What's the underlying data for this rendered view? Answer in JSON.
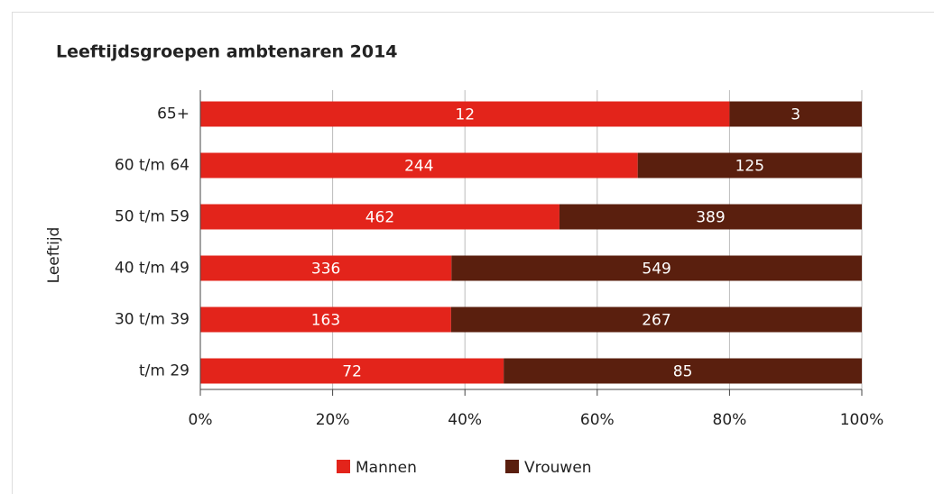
{
  "chart_data": {
    "type": "bar",
    "orientation": "horizontal",
    "stacking": "percent",
    "title": "Leeftijdsgroepen ambtenaren 2014",
    "y_label": "Leeftijd",
    "categories": [
      "65+",
      "60 t/m 64",
      "50 t/m 59",
      "40 t/m 49",
      "30 t/m 39",
      "t/m 29"
    ],
    "series": [
      {
        "name": "Mannen",
        "color": "#e3241b",
        "values": [
          12,
          244,
          462,
          336,
          163,
          72
        ]
      },
      {
        "name": "Vrouwen",
        "color": "#5a1f0e",
        "values": [
          3,
          125,
          389,
          549,
          267,
          85
        ]
      }
    ],
    "xlim": [
      0,
      100
    ],
    "xticks": [
      {
        "value": 0,
        "label": "0%"
      },
      {
        "value": 20,
        "label": "20%"
      },
      {
        "value": 40,
        "label": "40%"
      },
      {
        "value": 60,
        "label": "60%"
      },
      {
        "value": 80,
        "label": "80%"
      },
      {
        "value": 100,
        "label": "100%"
      }
    ],
    "grid": true,
    "legend": "bottom"
  }
}
